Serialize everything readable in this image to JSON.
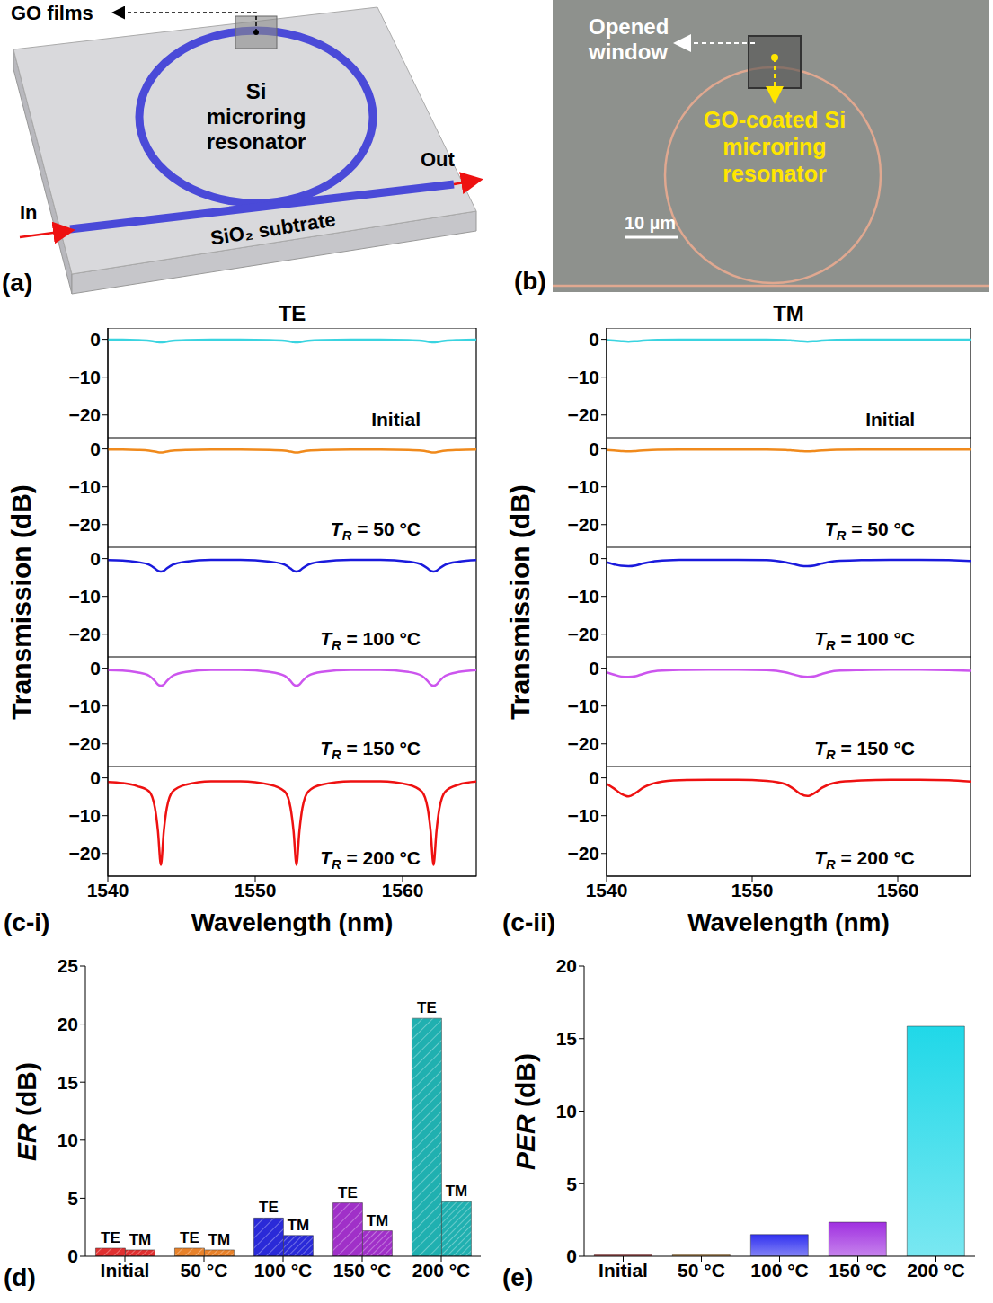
{
  "diagram_a": {
    "panel_label": "(a)",
    "go_films": "GO films",
    "ring": "Si microring resonator",
    "input": "In",
    "output": "Out",
    "substrate": "SiO₂ subtrate"
  },
  "image_b": {
    "panel_label": "(b)",
    "window": "Opened window",
    "ring": "GO-coated Si microring resonator",
    "scale_bar": "10 µm"
  },
  "chart_data": [
    {
      "type": "line",
      "title": "TE",
      "y_label": "Transmission (dB)",
      "annotation": "Initial",
      "color": "#3ad4e0",
      "x": [
        1540,
        1541,
        1542,
        1542.8,
        1543.2,
        1543.4,
        1543.6,
        1543.8,
        1544,
        1544.4,
        1545.3,
        1547,
        1549,
        1551,
        1552,
        1552.4,
        1552.6,
        1552.8,
        1553,
        1553.2,
        1553.6,
        1554.5,
        1556.5,
        1558.5,
        1560.4,
        1561.3,
        1561.7,
        1561.9,
        1562.1,
        1562.3,
        1562.5,
        1562.9,
        1563.8,
        1565
      ],
      "values": [
        -0.1,
        -0.1,
        -0.2,
        -0.4,
        -0.6,
        -0.75,
        -0.8,
        -0.75,
        -0.6,
        -0.4,
        -0.2,
        -0.1,
        -0.1,
        -0.2,
        -0.4,
        -0.6,
        -0.75,
        -0.8,
        -0.75,
        -0.6,
        -0.4,
        -0.2,
        -0.1,
        -0.1,
        -0.2,
        -0.4,
        -0.6,
        -0.75,
        -0.8,
        -0.75,
        -0.6,
        -0.4,
        -0.2,
        -0.1
      ],
      "xlim": [
        1540,
        1565
      ],
      "xticks": [
        1540,
        1550,
        1560
      ],
      "ylim": [
        -26,
        3
      ],
      "yticks": [
        {
          "value": -20,
          "label": "−20"
        },
        {
          "value": -10,
          "label": "−10"
        },
        0
      ],
      "tick_labels": "y"
    },
    {
      "type": "line",
      "annotation": "TR = 50 °C",
      "color": "#f08a1c",
      "x": [
        1540,
        1541,
        1542,
        1542.8,
        1543.2,
        1543.4,
        1543.6,
        1543.8,
        1544,
        1544.4,
        1545.3,
        1547,
        1549,
        1551,
        1552,
        1552.4,
        1552.6,
        1552.8,
        1553,
        1553.2,
        1553.6,
        1554.5,
        1556.5,
        1558.5,
        1560.4,
        1561.3,
        1561.7,
        1561.9,
        1562.1,
        1562.3,
        1562.5,
        1562.9,
        1563.8,
        1565
      ],
      "values": [
        -0.15,
        -0.15,
        -0.25,
        -0.45,
        -0.7,
        -0.85,
        -0.9,
        -0.85,
        -0.7,
        -0.45,
        -0.25,
        -0.15,
        -0.15,
        -0.25,
        -0.45,
        -0.7,
        -0.85,
        -0.9,
        -0.85,
        -0.7,
        -0.45,
        -0.25,
        -0.15,
        -0.15,
        -0.25,
        -0.45,
        -0.7,
        -0.85,
        -0.9,
        -0.85,
        -0.7,
        -0.45,
        -0.25,
        -0.15
      ],
      "xlim": [
        1540,
        1565
      ],
      "xticks": [
        1540,
        1550,
        1560
      ],
      "ylim": [
        -26,
        3
      ],
      "yticks": [
        {
          "value": -20,
          "label": "−20"
        },
        {
          "value": -10,
          "label": "−10"
        },
        0
      ],
      "tick_labels": "y"
    },
    {
      "type": "line",
      "annotation": "TR = 100 °C",
      "color": "#1a1adc",
      "x": [
        1540,
        1541,
        1542,
        1542.8,
        1543.2,
        1543.4,
        1543.6,
        1543.8,
        1544,
        1544.4,
        1545.3,
        1547,
        1549,
        1551,
        1552,
        1552.4,
        1552.6,
        1552.8,
        1553,
        1553.2,
        1553.6,
        1554.5,
        1556.5,
        1558.5,
        1560.4,
        1561.3,
        1561.7,
        1561.9,
        1562.1,
        1562.3,
        1562.5,
        1562.9,
        1563.8,
        1565
      ],
      "values": [
        -0.4,
        -0.5,
        -0.9,
        -1.6,
        -2.6,
        -3.2,
        -3.4,
        -3.2,
        -2.6,
        -1.6,
        -0.8,
        -0.35,
        -0.35,
        -0.8,
        -1.6,
        -2.6,
        -3.2,
        -3.4,
        -3.2,
        -2.6,
        -1.6,
        -0.8,
        -0.35,
        -0.35,
        -0.8,
        -1.6,
        -2.6,
        -3.2,
        -3.4,
        -3.2,
        -2.6,
        -1.6,
        -0.8,
        -0.4
      ],
      "xlim": [
        1540,
        1565
      ],
      "xticks": [
        1540,
        1550,
        1560
      ],
      "ylim": [
        -26,
        3
      ],
      "yticks": [
        {
          "value": -20,
          "label": "−20"
        },
        {
          "value": -10,
          "label": "−10"
        },
        0
      ],
      "tick_labels": "y"
    },
    {
      "type": "line",
      "annotation": "TR = 150 °C",
      "color": "#cc55ee",
      "x": [
        1540,
        1541,
        1542,
        1542.8,
        1543.2,
        1543.4,
        1543.6,
        1543.8,
        1544,
        1544.4,
        1545.3,
        1547,
        1549,
        1551,
        1552,
        1552.4,
        1552.6,
        1552.8,
        1553,
        1553.2,
        1553.6,
        1554.5,
        1556.5,
        1558.5,
        1560.4,
        1561.3,
        1561.7,
        1561.9,
        1562.1,
        1562.3,
        1562.5,
        1562.9,
        1563.8,
        1565
      ],
      "values": [
        -0.5,
        -0.6,
        -1.1,
        -2,
        -3.4,
        -4.3,
        -4.6,
        -4.3,
        -3.4,
        -2,
        -1,
        -0.45,
        -0.45,
        -1,
        -2,
        -3.4,
        -4.3,
        -4.6,
        -4.3,
        -3.4,
        -2,
        -1,
        -0.45,
        -0.45,
        -1,
        -2,
        -3.4,
        -4.3,
        -4.6,
        -4.3,
        -3.4,
        -2,
        -1,
        -0.5
      ],
      "xlim": [
        1540,
        1565
      ],
      "xticks": [
        1540,
        1550,
        1560
      ],
      "ylim": [
        -26,
        3
      ],
      "yticks": [
        {
          "value": -20,
          "label": "−20"
        },
        {
          "value": -10,
          "label": "−10"
        },
        0
      ],
      "tick_labels": "y"
    },
    {
      "type": "line",
      "annotation": "TR = 200 °C",
      "x_label": "Wavelength (nm)",
      "panel_label": "(c-i)",
      "color": "#ee1111",
      "x": [
        1540,
        1541,
        1542,
        1542.8,
        1543.2,
        1543.4,
        1543.6,
        1543.8,
        1544,
        1544.4,
        1545.3,
        1547,
        1549,
        1551,
        1552,
        1552.4,
        1552.6,
        1552.8,
        1553,
        1553.2,
        1553.6,
        1554.5,
        1556.5,
        1558.5,
        1560.4,
        1561.3,
        1561.7,
        1561.9,
        1562.1,
        1562.3,
        1562.5,
        1562.9,
        1563.8,
        1565
      ],
      "values": [
        -1.1,
        -1.4,
        -2.2,
        -3.6,
        -8,
        -14,
        -23,
        -14,
        -8,
        -3.6,
        -1.8,
        -0.9,
        -0.9,
        -1.8,
        -3.6,
        -8,
        -14,
        -23,
        -14,
        -8,
        -3.6,
        -1.8,
        -0.9,
        -0.9,
        -1.8,
        -3.6,
        -8,
        -14,
        -23,
        -14,
        -8,
        -3.6,
        -1.8,
        -1
      ],
      "xlim": [
        1540,
        1565
      ],
      "xticks": [
        1540,
        1550,
        1560
      ],
      "ylim": [
        -26,
        3
      ],
      "yticks": [
        {
          "value": -20,
          "label": "−20"
        },
        {
          "value": -10,
          "label": "−10"
        },
        0
      ]
    },
    {
      "type": "line",
      "title": "TM",
      "y_label": "Transmission (dB)",
      "annotation": "Initial",
      "color": "#3ad4e0",
      "x": [
        1540,
        1540.5,
        1541,
        1541.5,
        1542,
        1542.5,
        1543.5,
        1545,
        1547,
        1549,
        1551,
        1552.3,
        1552.8,
        1553.3,
        1553.8,
        1554.3,
        1554.8,
        1555.8,
        1557.5,
        1559.5,
        1561.5,
        1563.5,
        1565
      ],
      "values": [
        -0.2,
        -0.35,
        -0.5,
        -0.6,
        -0.5,
        -0.35,
        -0.15,
        -0.1,
        -0.1,
        -0.1,
        -0.1,
        -0.2,
        -0.35,
        -0.5,
        -0.6,
        -0.5,
        -0.35,
        -0.15,
        -0.1,
        -0.1,
        -0.1,
        -0.1,
        -0.1
      ],
      "xlim": [
        1540,
        1565
      ],
      "xticks": [
        1540,
        1550,
        1560
      ],
      "ylim": [
        -26,
        3
      ],
      "yticks": [
        {
          "value": -20,
          "label": "−20"
        },
        {
          "value": -10,
          "label": "−10"
        },
        0
      ],
      "tick_labels": "y"
    },
    {
      "type": "line",
      "annotation": "TR = 50 °C",
      "color": "#f08a1c",
      "x": [
        1540,
        1540.5,
        1541,
        1541.5,
        1542,
        1542.5,
        1543.5,
        1545,
        1547,
        1549,
        1551,
        1552.3,
        1552.8,
        1553.3,
        1553.8,
        1554.3,
        1554.8,
        1555.8,
        1557.5,
        1559.5,
        1561.5,
        1563.5,
        1565
      ],
      "values": [
        -0.25,
        -0.4,
        -0.55,
        -0.65,
        -0.55,
        -0.4,
        -0.2,
        -0.15,
        -0.15,
        -0.15,
        -0.15,
        -0.25,
        -0.4,
        -0.55,
        -0.65,
        -0.55,
        -0.4,
        -0.2,
        -0.15,
        -0.15,
        -0.15,
        -0.15,
        -0.15
      ],
      "xlim": [
        1540,
        1565
      ],
      "xticks": [
        1540,
        1550,
        1560
      ],
      "ylim": [
        -26,
        3
      ],
      "yticks": [
        {
          "value": -20,
          "label": "−20"
        },
        {
          "value": -10,
          "label": "−10"
        },
        0
      ],
      "tick_labels": "y"
    },
    {
      "type": "line",
      "annotation": "TR = 100 °C",
      "color": "#1a1adc",
      "x": [
        1540,
        1540.5,
        1541,
        1541.5,
        1542,
        1542.5,
        1543.5,
        1545,
        1547,
        1549,
        1551,
        1552.3,
        1552.8,
        1553.3,
        1553.8,
        1554.3,
        1554.8,
        1555.8,
        1557.5,
        1559.5,
        1561.5,
        1563.5,
        1565
      ],
      "values": [
        -1,
        -1.5,
        -1.9,
        -2,
        -1.8,
        -1.3,
        -0.6,
        -0.35,
        -0.3,
        -0.3,
        -0.4,
        -1,
        -1.4,
        -1.85,
        -2,
        -1.8,
        -1.3,
        -0.6,
        -0.4,
        -0.3,
        -0.3,
        -0.4,
        -0.6
      ],
      "xlim": [
        1540,
        1565
      ],
      "xticks": [
        1540,
        1550,
        1560
      ],
      "ylim": [
        -26,
        3
      ],
      "yticks": [
        {
          "value": -20,
          "label": "−20"
        },
        {
          "value": -10,
          "label": "−10"
        },
        0
      ],
      "tick_labels": "y"
    },
    {
      "type": "line",
      "annotation": "TR = 150 °C",
      "color": "#cc55ee",
      "x": [
        1540,
        1540.5,
        1541,
        1541.5,
        1542,
        1542.5,
        1543.5,
        1545,
        1547,
        1549,
        1551,
        1552.3,
        1552.8,
        1553.3,
        1553.8,
        1554.3,
        1554.8,
        1555.8,
        1557.5,
        1559.5,
        1561.5,
        1563.5,
        1565
      ],
      "values": [
        -1.1,
        -1.7,
        -2.2,
        -2.3,
        -2.1,
        -1.5,
        -0.7,
        -0.45,
        -0.4,
        -0.4,
        -0.5,
        -1.1,
        -1.6,
        -2.1,
        -2.3,
        -2.1,
        -1.5,
        -0.7,
        -0.5,
        -0.4,
        -0.4,
        -0.5,
        -0.7
      ],
      "xlim": [
        1540,
        1565
      ],
      "xticks": [
        1540,
        1550,
        1560
      ],
      "ylim": [
        -26,
        3
      ],
      "yticks": [
        {
          "value": -20,
          "label": "−20"
        },
        {
          "value": -10,
          "label": "−10"
        },
        0
      ],
      "tick_labels": "y"
    },
    {
      "type": "line",
      "annotation": "TR = 200 °C",
      "x_label": "Wavelength (nm)",
      "panel_label": "(c-ii)",
      "color": "#ee1111",
      "x": [
        1540,
        1540.5,
        1541,
        1541.5,
        1542,
        1542.5,
        1543.5,
        1545,
        1547,
        1549,
        1551,
        1552.3,
        1552.8,
        1553.3,
        1553.8,
        1554.3,
        1554.8,
        1555.8,
        1557.5,
        1559.5,
        1561.5,
        1563.5,
        1565
      ],
      "values": [
        -1.6,
        -2.8,
        -4.2,
        -4.9,
        -4,
        -2.6,
        -1.2,
        -0.6,
        -0.5,
        -0.5,
        -0.8,
        -1.7,
        -2.8,
        -4.2,
        -4.8,
        -4,
        -2.6,
        -1.2,
        -0.7,
        -0.5,
        -0.5,
        -0.6,
        -1
      ],
      "xlim": [
        1540,
        1565
      ],
      "xticks": [
        1540,
        1550,
        1560
      ],
      "ylim": [
        -26,
        3
      ],
      "yticks": [
        {
          "value": -20,
          "label": "−20"
        },
        {
          "value": -10,
          "label": "−10"
        },
        0
      ]
    },
    {
      "type": "bar",
      "panel_label": "(d)",
      "y_label": "ER (dB)",
      "categories": [
        "Initial",
        "50 °C",
        "100 °C",
        "150 °C",
        "200 °C"
      ],
      "series": [
        {
          "name": "TE",
          "values": [
            0.7,
            0.7,
            3.3,
            4.6,
            20.5
          ]
        },
        {
          "name": "TM",
          "values": [
            0.55,
            0.55,
            1.8,
            2.2,
            4.7
          ]
        }
      ],
      "colors": [
        "#e03030",
        "#e8822a",
        "#2a2ad8",
        "#a030c8",
        "#20b0b0"
      ],
      "ylim": [
        0,
        25
      ],
      "yticks": [
        0,
        5,
        10,
        15,
        20,
        25
      ]
    },
    {
      "type": "bar",
      "panel_label": "(e)",
      "y_label": "PER (dB)",
      "categories": [
        "Initial",
        "50 °C",
        "100 °C",
        "150 °C",
        "200 °C"
      ],
      "values": [
        0.1,
        0.1,
        1.5,
        2.35,
        15.85
      ],
      "colors": [
        "#e03030",
        "#f0a030",
        "#3030f0",
        "#a030e0",
        "#20d8e8"
      ],
      "ylim": [
        0,
        20
      ],
      "yticks": [
        0,
        5,
        10,
        15,
        20
      ]
    }
  ]
}
